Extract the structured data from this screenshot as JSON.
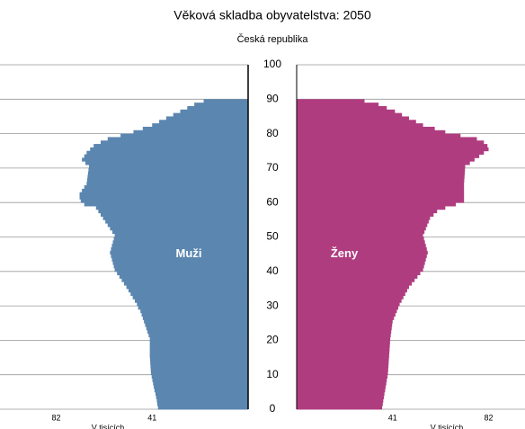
{
  "chart_data": {
    "type": "pyramid",
    "title": "Věková skladba obyvatelstva: 2050",
    "subtitle": "Česká republika",
    "xlabel": "V tisících",
    "ages": [
      0,
      1,
      2,
      3,
      4,
      5,
      6,
      7,
      8,
      9,
      10,
      11,
      12,
      13,
      14,
      15,
      16,
      17,
      18,
      19,
      20,
      21,
      22,
      23,
      24,
      25,
      26,
      27,
      28,
      29,
      30,
      31,
      32,
      33,
      34,
      35,
      36,
      37,
      38,
      39,
      40,
      41,
      42,
      43,
      44,
      45,
      46,
      47,
      48,
      49,
      50,
      51,
      52,
      53,
      54,
      55,
      56,
      57,
      58,
      59,
      60,
      61,
      62,
      63,
      64,
      65,
      66,
      67,
      68,
      69,
      70,
      71,
      72,
      73,
      74,
      75,
      76,
      77,
      78,
      79,
      80,
      81,
      82,
      83,
      84,
      85,
      86,
      87,
      88,
      89
    ],
    "series": [
      {
        "name": "Muži",
        "color": "#5b86b0",
        "values": [
          38.5,
          38.8,
          39,
          39.3,
          39.6,
          40,
          40.3,
          40.6,
          40.9,
          41.2,
          41.5,
          41.6,
          41.7,
          41.8,
          41.9,
          42,
          42,
          42,
          42,
          42,
          42,
          42.5,
          43,
          43.5,
          44,
          44.5,
          45,
          45.5,
          46,
          47,
          47.5,
          48.4,
          49.3,
          50.2,
          51.1,
          52,
          53,
          54,
          55,
          56,
          57,
          57.4,
          57.8,
          58.2,
          58.6,
          59,
          58.6,
          58.2,
          57.8,
          57.4,
          57,
          58,
          59,
          60,
          61,
          62,
          63,
          64,
          65,
          70,
          71.5,
          72,
          72,
          71,
          70,
          69,
          68.8,
          68.6,
          68.4,
          68.2,
          68,
          69.5,
          71,
          70,
          69,
          67.5,
          66,
          63,
          60,
          54.5,
          49,
          45,
          41,
          38,
          35,
          32,
          29,
          26,
          23,
          19
        ]
      },
      {
        "name": "Ženy",
        "color": "#b03c80",
        "values": [
          36.5,
          36.8,
          37,
          37.3,
          37.5,
          37.8,
          38,
          38.3,
          38.5,
          38.8,
          39,
          39.1,
          39.2,
          39.3,
          39.4,
          39.5,
          39.6,
          39.7,
          39.8,
          39.9,
          40,
          40.2,
          40.4,
          40.6,
          40.8,
          41,
          41.6,
          42.2,
          42.8,
          43.4,
          44,
          44.8,
          45.6,
          46.4,
          47.2,
          48,
          49.2,
          50.4,
          51.6,
          52.8,
          54,
          54.4,
          54.8,
          55.2,
          55.6,
          56,
          55.6,
          55.2,
          54.8,
          54.4,
          54,
          54.6,
          55.2,
          55.8,
          56.4,
          57,
          58.5,
          60,
          63.5,
          68,
          71.5,
          71.5,
          71.5,
          71.5,
          71.5,
          71.5,
          71.6,
          71.7,
          71.8,
          71.9,
          72,
          74,
          76,
          78,
          80,
          82,
          81.5,
          80,
          77,
          70,
          63.5,
          59,
          54,
          51,
          48,
          45,
          42,
          38.5,
          35,
          29
        ]
      }
    ],
    "xlim": [
      0,
      106
    ],
    "xticks": [
      41,
      82
    ],
    "ylim": [
      0,
      100
    ],
    "yticks": [
      0,
      10,
      20,
      30,
      40,
      50,
      60,
      70,
      80,
      90,
      100
    ],
    "grid": true
  }
}
